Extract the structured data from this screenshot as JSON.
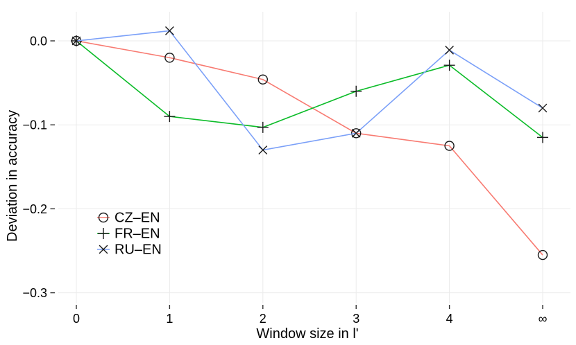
{
  "chart_data": {
    "type": "line",
    "title": "",
    "xlabel": "Window size in l'",
    "ylabel": "Deviation in accuracy",
    "x_tick_labels": [
      "0",
      "1",
      "2",
      "3",
      "4",
      "∞"
    ],
    "y_ticks": [
      0.0,
      -0.1,
      -0.2,
      -0.3
    ],
    "y_tick_labels": [
      "0.0",
      "−0.1",
      "−0.2",
      "−0.3"
    ],
    "ylim": [
      -0.313,
      0.035
    ],
    "grid": true,
    "grid_color": "#EBEBEB",
    "tick_color": "#333333",
    "marker_color": "#1A1A1A",
    "legend_position": "inside-left-middle",
    "series": [
      {
        "name": "CZ–EN",
        "color": "#F87B72",
        "marker": "circle",
        "values": [
          0.0,
          -0.02,
          -0.046,
          -0.11,
          -0.125,
          -0.255
        ]
      },
      {
        "name": "FR–EN",
        "color": "#0CBC29",
        "marker": "plus",
        "values": [
          0.0,
          -0.09,
          -0.103,
          -0.06,
          -0.029,
          -0.115
        ]
      },
      {
        "name": "RU–EN",
        "color": "#7BA0F8",
        "marker": "x",
        "values": [
          0.0,
          0.012,
          -0.13,
          -0.11,
          -0.011,
          -0.08
        ]
      }
    ]
  }
}
